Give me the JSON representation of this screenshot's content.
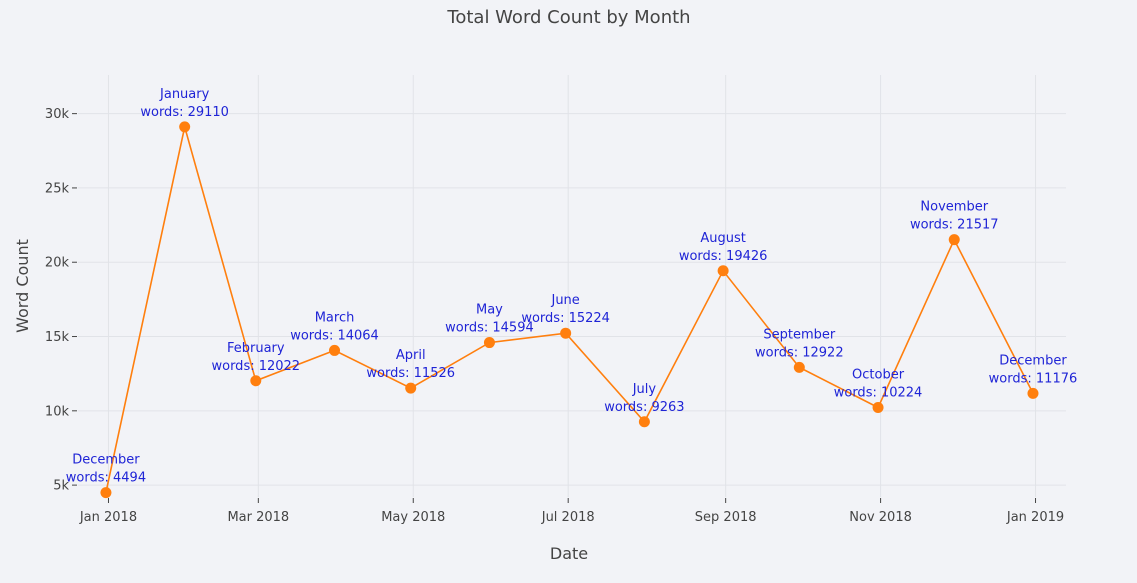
{
  "chart_data": {
    "type": "line",
    "title": "Total Word Count by Month",
    "xlabel": "Date",
    "ylabel": "Word Count",
    "x_ticks": [
      "2018-01-01",
      "2018-03-01",
      "2018-05-01",
      "2018-07-01",
      "2018-09-01",
      "2018-11-01",
      "2019-01-01"
    ],
    "x_tick_labels": [
      "Jan 2018",
      "Mar 2018",
      "May 2018",
      "Jul 2018",
      "Sep 2018",
      "Nov 2018",
      "Jan 2019"
    ],
    "xlim": [
      "2017-12-20",
      "2019-01-13"
    ],
    "ylim": [
      4200,
      32600
    ],
    "y_ticks": [
      5000,
      10000,
      15000,
      20000,
      25000,
      30000
    ],
    "y_tick_labels": [
      "5k",
      "10k",
      "15k",
      "20k",
      "25k",
      "30k"
    ],
    "grid": true,
    "line_color": "#ff7f0e",
    "label_color": "#1f24d6",
    "series": [
      {
        "points": [
          {
            "date": "2017-12-31",
            "month": "December",
            "words": 4494,
            "text": "words: 4494"
          },
          {
            "date": "2018-01-31",
            "month": "January",
            "words": 29110,
            "text": "words: 29110"
          },
          {
            "date": "2018-02-28",
            "month": "February",
            "words": 12022,
            "text": "words: 12022"
          },
          {
            "date": "2018-03-31",
            "month": "March",
            "words": 14064,
            "text": "words: 14064"
          },
          {
            "date": "2018-04-30",
            "month": "April",
            "words": 11526,
            "text": "words: 11526"
          },
          {
            "date": "2018-05-31",
            "month": "May",
            "words": 14594,
            "text": "words: 14594"
          },
          {
            "date": "2018-06-30",
            "month": "June",
            "words": 15224,
            "text": "words: 15224"
          },
          {
            "date": "2018-07-31",
            "month": "July",
            "words": 9263,
            "text": "words: 9263"
          },
          {
            "date": "2018-08-31",
            "month": "August",
            "words": 19426,
            "text": "words: 19426"
          },
          {
            "date": "2018-09-30",
            "month": "September",
            "words": 12922,
            "text": "words: 12922"
          },
          {
            "date": "2018-10-31",
            "month": "October",
            "words": 10224,
            "text": "words: 10224"
          },
          {
            "date": "2018-11-30",
            "month": "November",
            "words": 21517,
            "text": "words: 21517"
          },
          {
            "date": "2018-12-31",
            "month": "December",
            "words": 11176,
            "text": "words: 11176"
          }
        ]
      }
    ]
  }
}
